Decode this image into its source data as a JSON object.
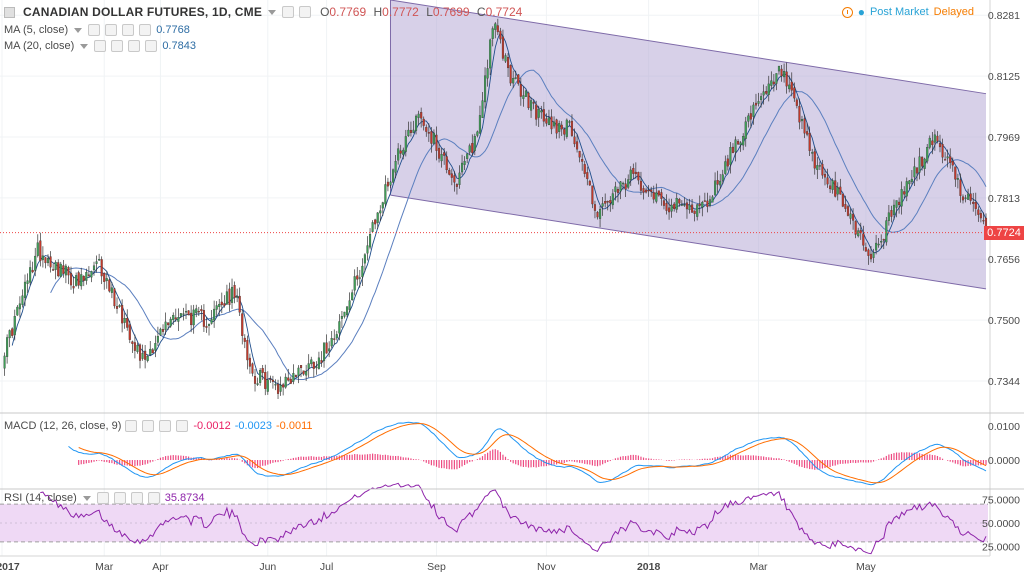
{
  "header": {
    "symbol_title": "CANADIAN DOLLAR FUTURES, 1D, CME",
    "ohlc": [
      {
        "k": "O",
        "v": "0.7769"
      },
      {
        "k": "H",
        "v": "0.7772"
      },
      {
        "k": "L",
        "v": "0.7699"
      },
      {
        "k": "C",
        "v": "0.7724"
      }
    ],
    "post_market": "Post Market",
    "delayed": "Delayed"
  },
  "indicators": {
    "ma5": {
      "label": "MA (5, close)",
      "value": "0.7768",
      "color": "#2e6da4"
    },
    "ma20": {
      "label": "MA (20, close)",
      "value": "0.7843",
      "color": "#2e6da4"
    },
    "macd": {
      "label": "MACD (12, 26, close, 9)",
      "hist": "-0.0012",
      "macd": "-0.0023",
      "signal": "-0.0011",
      "hist_color": "#e91e63",
      "macd_color": "#2196f3",
      "signal_color": "#ff6d00"
    },
    "rsi": {
      "label": "RSI (14, close)",
      "value": "35.8734",
      "color": "#8e24aa"
    }
  },
  "last_price_tag": "0.7724",
  "colors": {
    "up": "#3f9e57",
    "down": "#c0392b",
    "channel_fill": "#b7aad6",
    "channel_line": "#7e6aa8",
    "rsi_band": "#efd9f5"
  },
  "chart_data": [
    {
      "type": "candlestick",
      "title": "",
      "yaxis_ticks": [
        "0.8281",
        "0.8125",
        "0.7969",
        "0.7813",
        "0.7656",
        "0.7500",
        "0.7344"
      ],
      "ylim": [
        0.7262,
        0.832
      ],
      "xaxis_ticks": [
        "2017",
        "Mar",
        "Apr",
        "Jun",
        "Jul",
        "Sep",
        "Nov",
        "2018",
        "Mar",
        "May"
      ],
      "trading_days": 345,
      "anchors": [
        {
          "day": 0,
          "price": 0.74
        },
        {
          "day": 14,
          "price": 0.768
        },
        {
          "day": 30,
          "price": 0.759
        },
        {
          "day": 38,
          "price": 0.764
        },
        {
          "day": 55,
          "price": 0.74
        },
        {
          "day": 68,
          "price": 0.752
        },
        {
          "day": 80,
          "price": 0.75
        },
        {
          "day": 91,
          "price": 0.757
        },
        {
          "day": 98,
          "price": 0.736
        },
        {
          "day": 108,
          "price": 0.733
        },
        {
          "day": 125,
          "price": 0.741
        },
        {
          "day": 135,
          "price": 0.753
        },
        {
          "day": 145,
          "price": 0.773
        },
        {
          "day": 155,
          "price": 0.793
        },
        {
          "day": 163,
          "price": 0.803
        },
        {
          "day": 178,
          "price": 0.785
        },
        {
          "day": 186,
          "price": 0.798
        },
        {
          "day": 192,
          "price": 0.826
        },
        {
          "day": 200,
          "price": 0.811
        },
        {
          "day": 212,
          "price": 0.801
        },
        {
          "day": 223,
          "price": 0.799
        },
        {
          "day": 233,
          "price": 0.777
        },
        {
          "day": 247,
          "price": 0.787
        },
        {
          "day": 262,
          "price": 0.779
        },
        {
          "day": 275,
          "price": 0.779
        },
        {
          "day": 290,
          "price": 0.799
        },
        {
          "day": 305,
          "price": 0.814
        },
        {
          "day": 318,
          "price": 0.79
        },
        {
          "day": 330,
          "price": 0.779
        },
        {
          "day": 340,
          "price": 0.766
        },
        {
          "day": 352,
          "price": 0.782
        },
        {
          "day": 365,
          "price": 0.797
        },
        {
          "day": 375,
          "price": 0.784
        },
        {
          "day": 385,
          "price": 0.7724
        }
      ],
      "channel": {
        "upper": [
          {
            "day": 152,
            "price": 0.832
          },
          {
            "day": 385,
            "price": 0.808
          }
        ],
        "lower": [
          {
            "day": 152,
            "price": 0.782
          },
          {
            "day": 385,
            "price": 0.758
          }
        ]
      },
      "last_price": 0.7724
    },
    {
      "type": "line",
      "title": "",
      "yaxis_ticks": [
        "0.0100",
        "0.0000"
      ],
      "ylim": [
        -0.0085,
        0.0135
      ]
    },
    {
      "type": "line",
      "title": "",
      "yaxis_ticks": [
        "75.0000",
        "50.0000",
        "25.0000"
      ],
      "ylim": [
        15,
        85
      ],
      "bands": [
        30,
        70
      ]
    }
  ]
}
